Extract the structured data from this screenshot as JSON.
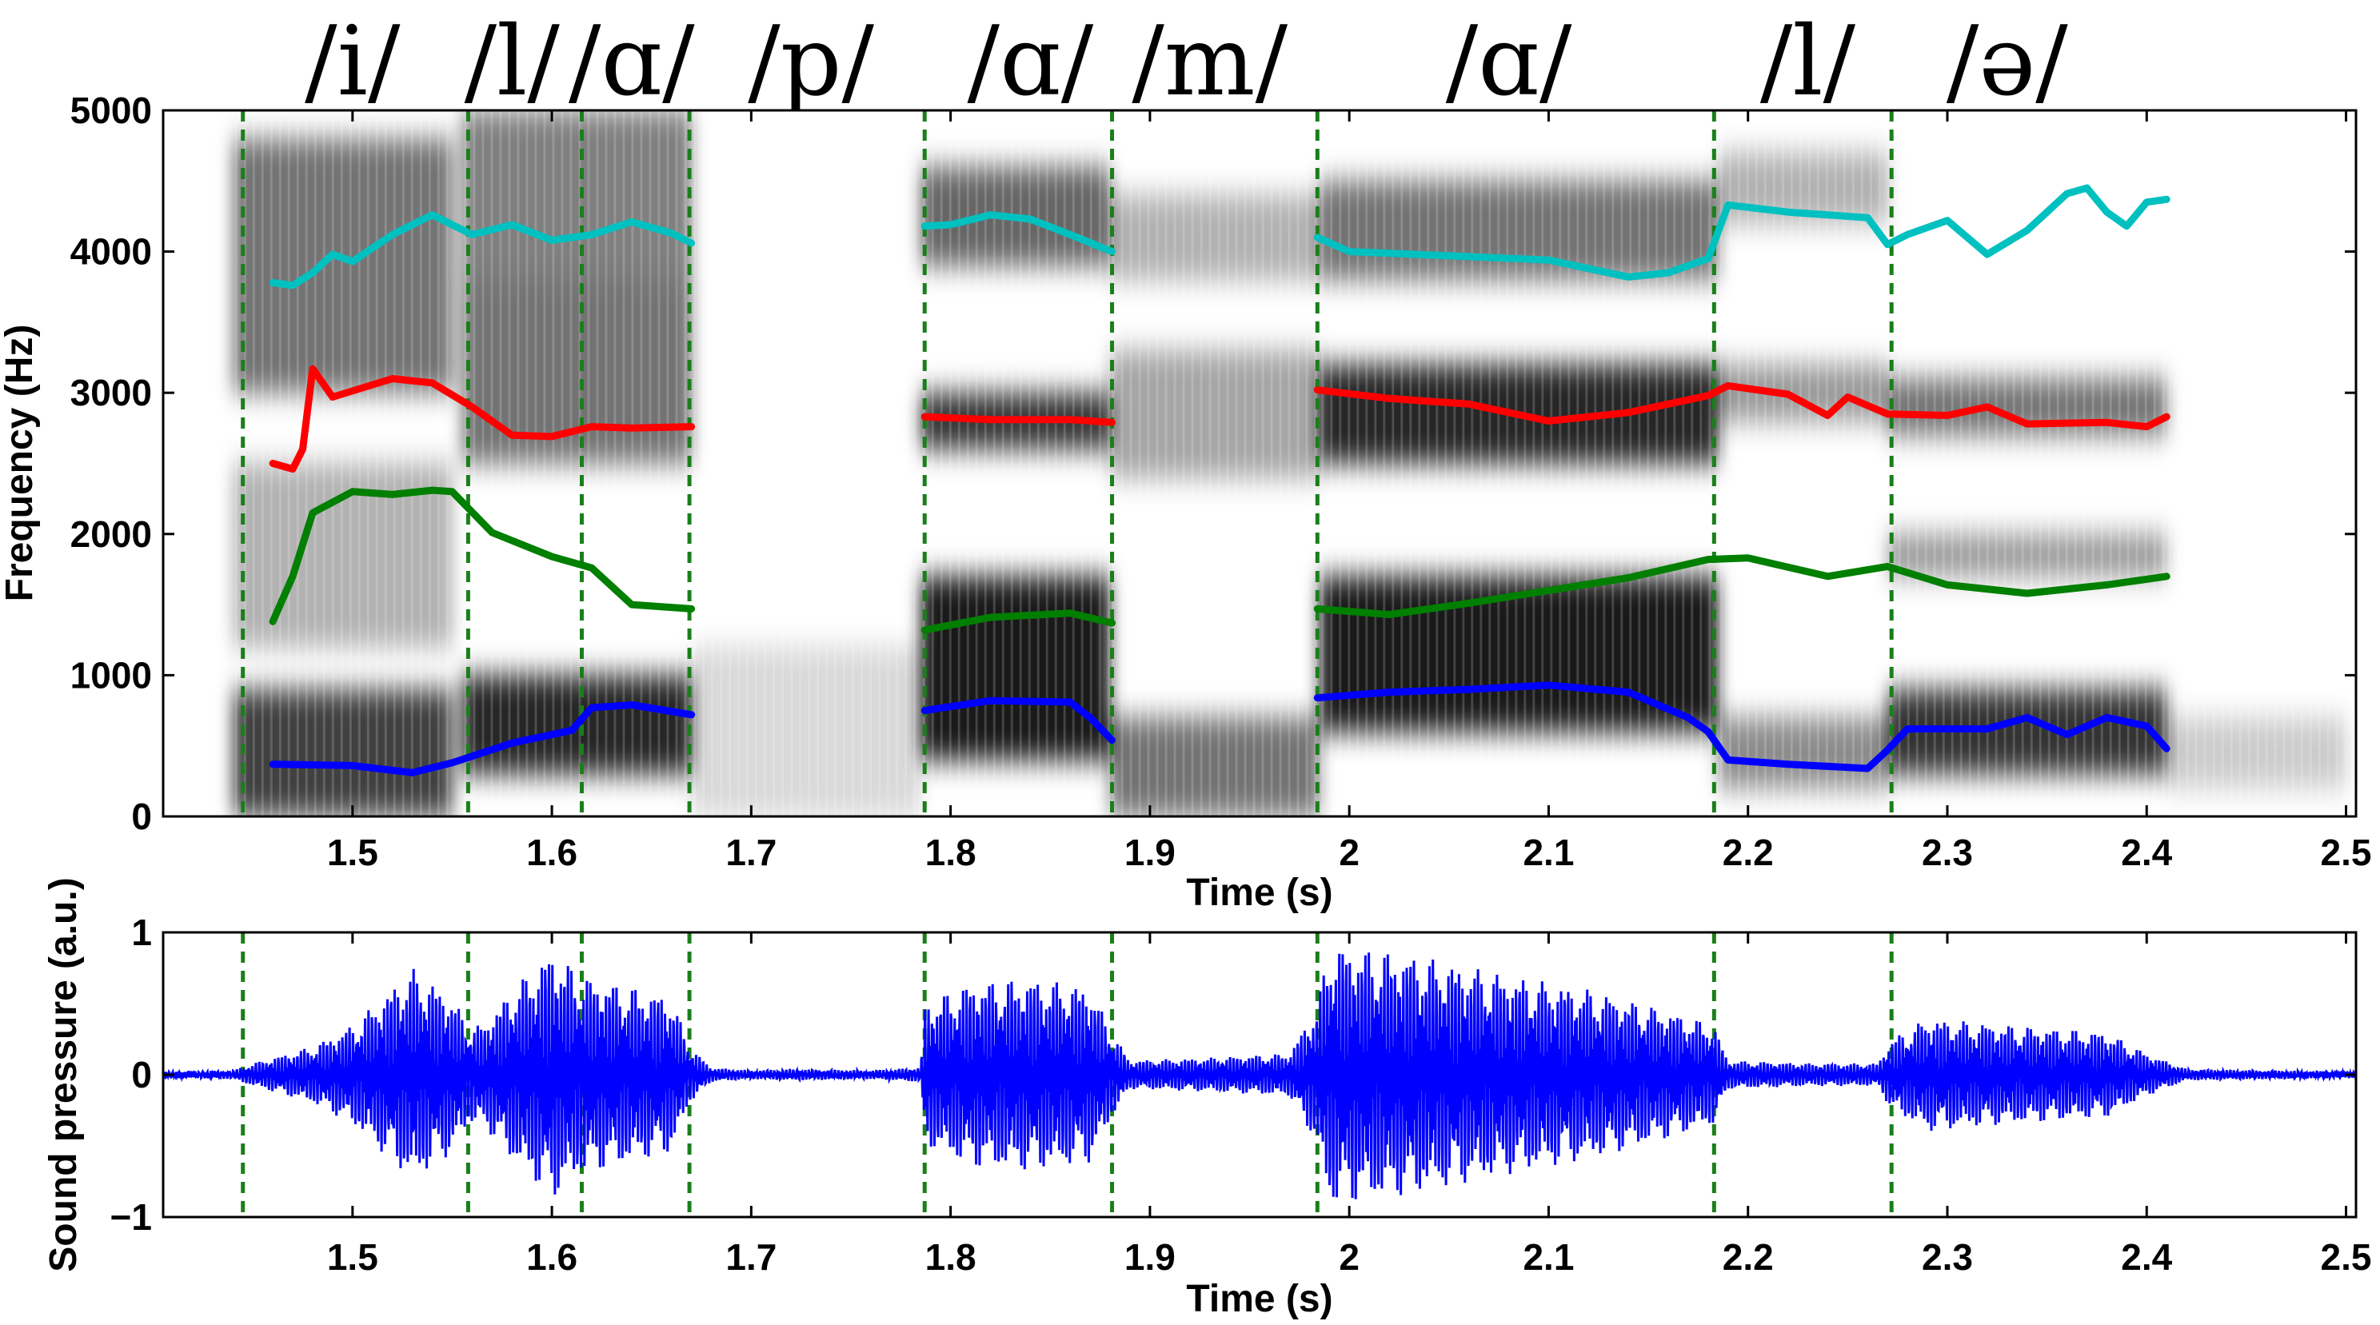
{
  "chart_data": [
    {
      "type": "spectrogram",
      "xlabel": "Time (s)",
      "ylabel": "Frequency (Hz)",
      "xlim": [
        1.405,
        2.505
      ],
      "ylim": [
        0,
        5000
      ],
      "xticks": [
        "1.5",
        "1.6",
        "1.7",
        "1.8",
        "1.9",
        "2",
        "2.1",
        "2.2",
        "2.3",
        "2.4",
        "2.5"
      ],
      "yticks": [
        "0",
        "1000",
        "2000",
        "3000",
        "4000",
        "5000"
      ],
      "phonemes": [
        {
          "label": "/i/",
          "t": 1.5
        },
        {
          "label": "/l/",
          "t": 1.58
        },
        {
          "label": "/ɑ/",
          "t": 1.64
        },
        {
          "label": "/p/",
          "t": 1.73
        },
        {
          "label": "/ɑ/",
          "t": 1.84
        },
        {
          "label": "/m/",
          "t": 1.93
        },
        {
          "label": "/ɑ/",
          "t": 2.08
        },
        {
          "label": "/l/",
          "t": 2.23
        },
        {
          "label": "/ə/",
          "t": 2.33
        }
      ],
      "boundaries": [
        1.445,
        1.558,
        1.615,
        1.669,
        1.787,
        1.881,
        1.984,
        2.183,
        2.272
      ],
      "energy_segments": [
        {
          "t0": 1.44,
          "t1": 1.55,
          "bands": [
            [
              0,
              900,
              0.75
            ],
            [
              3000,
              4800,
              0.55
            ],
            [
              1200,
              2500,
              0.3
            ]
          ]
        },
        {
          "t0": 1.555,
          "t1": 1.67,
          "bands": [
            [
              300,
              1000,
              0.85
            ],
            [
              2500,
              3800,
              0.55
            ],
            [
              3800,
              5000,
              0.5
            ]
          ]
        },
        {
          "t0": 1.67,
          "t1": 1.785,
          "bands": [
            [
              0,
              1200,
              0.15
            ]
          ]
        },
        {
          "t0": 1.785,
          "t1": 1.88,
          "bands": [
            [
              400,
              1700,
              0.9
            ],
            [
              2600,
              3000,
              0.8
            ],
            [
              3900,
              4600,
              0.6
            ]
          ]
        },
        {
          "t0": 1.88,
          "t1": 1.985,
          "bands": [
            [
              0,
              700,
              0.55
            ],
            [
              2400,
              3300,
              0.35
            ],
            [
              3800,
              4400,
              0.3
            ]
          ]
        },
        {
          "t0": 1.985,
          "t1": 2.185,
          "bands": [
            [
              600,
              1700,
              0.9
            ],
            [
              2500,
              3200,
              0.85
            ],
            [
              3800,
              4500,
              0.55
            ]
          ]
        },
        {
          "t0": 2.185,
          "t1": 2.27,
          "bands": [
            [
              200,
              700,
              0.45
            ],
            [
              2800,
              3200,
              0.4
            ],
            [
              4200,
              4700,
              0.3
            ]
          ]
        },
        {
          "t0": 2.27,
          "t1": 2.41,
          "bands": [
            [
              300,
              900,
              0.8
            ],
            [
              2700,
              3100,
              0.55
            ],
            [
              1700,
              2000,
              0.4
            ]
          ]
        },
        {
          "t0": 2.41,
          "t1": 2.5,
          "bands": [
            [
              200,
              700,
              0.2
            ]
          ]
        }
      ],
      "series": [
        {
          "color": "#00c0c0",
          "segments": [
            [
              [
                1.46,
                3780
              ],
              [
                1.47,
                3760
              ],
              [
                1.48,
                3850
              ],
              [
                1.49,
                3980
              ],
              [
                1.5,
                3930
              ],
              [
                1.52,
                4120
              ],
              [
                1.54,
                4260
              ],
              [
                1.56,
                4120
              ],
              [
                1.58,
                4190
              ],
              [
                1.6,
                4080
              ],
              [
                1.62,
                4120
              ],
              [
                1.64,
                4210
              ],
              [
                1.66,
                4130
              ],
              [
                1.67,
                4060
              ]
            ],
            [
              [
                1.787,
                4180
              ],
              [
                1.8,
                4190
              ],
              [
                1.82,
                4260
              ],
              [
                1.84,
                4230
              ],
              [
                1.86,
                4120
              ],
              [
                1.881,
                4000
              ]
            ],
            [
              [
                1.984,
                4100
              ],
              [
                2.0,
                4000
              ],
              [
                2.05,
                3970
              ],
              [
                2.1,
                3940
              ],
              [
                2.14,
                3820
              ],
              [
                2.16,
                3850
              ],
              [
                2.18,
                3950
              ],
              [
                2.19,
                4330
              ],
              [
                2.22,
                4280
              ],
              [
                2.26,
                4240
              ],
              [
                2.27,
                4050
              ],
              [
                2.28,
                4120
              ],
              [
                2.3,
                4220
              ],
              [
                2.32,
                3980
              ],
              [
                2.34,
                4150
              ],
              [
                2.36,
                4410
              ],
              [
                2.37,
                4450
              ],
              [
                2.38,
                4280
              ],
              [
                2.39,
                4180
              ],
              [
                2.4,
                4350
              ],
              [
                2.41,
                4370
              ]
            ]
          ]
        },
        {
          "color": "#ff0000",
          "segments": [
            [
              [
                1.46,
                2500
              ],
              [
                1.47,
                2460
              ],
              [
                1.475,
                2600
              ],
              [
                1.48,
                3170
              ],
              [
                1.49,
                2970
              ],
              [
                1.52,
                3100
              ],
              [
                1.54,
                3070
              ],
              [
                1.56,
                2900
              ],
              [
                1.58,
                2700
              ],
              [
                1.6,
                2690
              ],
              [
                1.62,
                2760
              ],
              [
                1.64,
                2750
              ],
              [
                1.67,
                2760
              ]
            ],
            [
              [
                1.787,
                2830
              ],
              [
                1.82,
                2810
              ],
              [
                1.86,
                2810
              ],
              [
                1.881,
                2790
              ]
            ],
            [
              [
                1.984,
                3020
              ],
              [
                2.02,
                2960
              ],
              [
                2.06,
                2920
              ],
              [
                2.1,
                2800
              ],
              [
                2.14,
                2860
              ],
              [
                2.18,
                2980
              ],
              [
                2.19,
                3050
              ],
              [
                2.22,
                2990
              ],
              [
                2.24,
                2840
              ],
              [
                2.25,
                2970
              ],
              [
                2.27,
                2850
              ],
              [
                2.3,
                2840
              ],
              [
                2.32,
                2900
              ],
              [
                2.34,
                2780
              ],
              [
                2.38,
                2790
              ],
              [
                2.4,
                2760
              ],
              [
                2.41,
                2830
              ]
            ]
          ]
        },
        {
          "color": "#007f00",
          "segments": [
            [
              [
                1.46,
                1380
              ],
              [
                1.47,
                1700
              ],
              [
                1.48,
                2150
              ],
              [
                1.5,
                2300
              ],
              [
                1.52,
                2280
              ],
              [
                1.54,
                2310
              ],
              [
                1.55,
                2300
              ],
              [
                1.57,
                2010
              ],
              [
                1.6,
                1840
              ],
              [
                1.62,
                1760
              ],
              [
                1.64,
                1500
              ],
              [
                1.67,
                1470
              ]
            ],
            [
              [
                1.787,
                1320
              ],
              [
                1.82,
                1410
              ],
              [
                1.86,
                1440
              ],
              [
                1.881,
                1370
              ]
            ],
            [
              [
                1.984,
                1470
              ],
              [
                2.02,
                1430
              ],
              [
                2.06,
                1510
              ],
              [
                2.1,
                1600
              ],
              [
                2.14,
                1690
              ],
              [
                2.18,
                1820
              ],
              [
                2.2,
                1830
              ],
              [
                2.24,
                1700
              ],
              [
                2.27,
                1770
              ],
              [
                2.3,
                1640
              ],
              [
                2.34,
                1580
              ],
              [
                2.38,
                1640
              ],
              [
                2.41,
                1700
              ]
            ]
          ]
        },
        {
          "color": "#0000ff",
          "segments": [
            [
              [
                1.46,
                370
              ],
              [
                1.5,
                360
              ],
              [
                1.53,
                310
              ],
              [
                1.55,
                380
              ],
              [
                1.58,
                520
              ],
              [
                1.61,
                610
              ],
              [
                1.62,
                770
              ],
              [
                1.64,
                790
              ],
              [
                1.67,
                720
              ]
            ],
            [
              [
                1.787,
                750
              ],
              [
                1.82,
                820
              ],
              [
                1.86,
                810
              ],
              [
                1.87,
                700
              ],
              [
                1.881,
                540
              ]
            ],
            [
              [
                1.984,
                840
              ],
              [
                2.02,
                880
              ],
              [
                2.06,
                900
              ],
              [
                2.1,
                930
              ],
              [
                2.14,
                880
              ],
              [
                2.17,
                700
              ],
              [
                2.18,
                600
              ],
              [
                2.19,
                400
              ],
              [
                2.22,
                370
              ],
              [
                2.26,
                340
              ],
              [
                2.27,
                470
              ],
              [
                2.28,
                620
              ],
              [
                2.32,
                620
              ],
              [
                2.34,
                700
              ],
              [
                2.36,
                580
              ],
              [
                2.38,
                700
              ],
              [
                2.4,
                640
              ],
              [
                2.41,
                480
              ]
            ]
          ]
        }
      ]
    },
    {
      "type": "line",
      "xlabel": "Time (s)",
      "ylabel": "Sound pressure (a.u.)",
      "xlim": [
        1.405,
        2.505
      ],
      "ylim": [
        -1,
        1
      ],
      "xticks": [
        "1.5",
        "1.6",
        "1.7",
        "1.8",
        "1.9",
        "2",
        "2.1",
        "2.2",
        "2.3",
        "2.4",
        "2.5"
      ],
      "yticks": [
        "-1",
        "0",
        "1"
      ],
      "boundaries": [
        1.445,
        1.558,
        1.615,
        1.669,
        1.787,
        1.881,
        1.984,
        2.183,
        2.272
      ],
      "series": [
        {
          "color": "#0000ff",
          "envelope": [
            [
              1.405,
              0.02
            ],
            [
              1.44,
              0.03
            ],
            [
              1.45,
              0.08
            ],
            [
              1.48,
              0.2
            ],
            [
              1.5,
              0.35
            ],
            [
              1.53,
              0.75
            ],
            [
              1.55,
              0.55
            ],
            [
              1.558,
              0.35
            ],
            [
              1.565,
              0.35
            ],
            [
              1.58,
              0.6
            ],
            [
              1.6,
              0.88
            ],
            [
              1.615,
              0.7
            ],
            [
              1.63,
              0.65
            ],
            [
              1.66,
              0.55
            ],
            [
              1.669,
              0.2
            ],
            [
              1.68,
              0.05
            ],
            [
              1.7,
              0.03
            ],
            [
              1.72,
              0.04
            ],
            [
              1.76,
              0.03
            ],
            [
              1.785,
              0.05
            ],
            [
              1.787,
              0.5
            ],
            [
              1.81,
              0.65
            ],
            [
              1.84,
              0.68
            ],
            [
              1.87,
              0.62
            ],
            [
              1.881,
              0.3
            ],
            [
              1.89,
              0.1
            ],
            [
              1.93,
              0.12
            ],
            [
              1.97,
              0.15
            ],
            [
              1.984,
              0.5
            ],
            [
              1.99,
              0.92
            ],
            [
              2.03,
              0.85
            ],
            [
              2.08,
              0.7
            ],
            [
              2.12,
              0.6
            ],
            [
              2.16,
              0.45
            ],
            [
              2.183,
              0.35
            ],
            [
              2.19,
              0.1
            ],
            [
              2.23,
              0.08
            ],
            [
              2.265,
              0.08
            ],
            [
              2.272,
              0.25
            ],
            [
              2.29,
              0.4
            ],
            [
              2.33,
              0.35
            ],
            [
              2.38,
              0.3
            ],
            [
              2.4,
              0.15
            ],
            [
              2.42,
              0.04
            ],
            [
              2.505,
              0.02
            ]
          ]
        }
      ]
    }
  ]
}
